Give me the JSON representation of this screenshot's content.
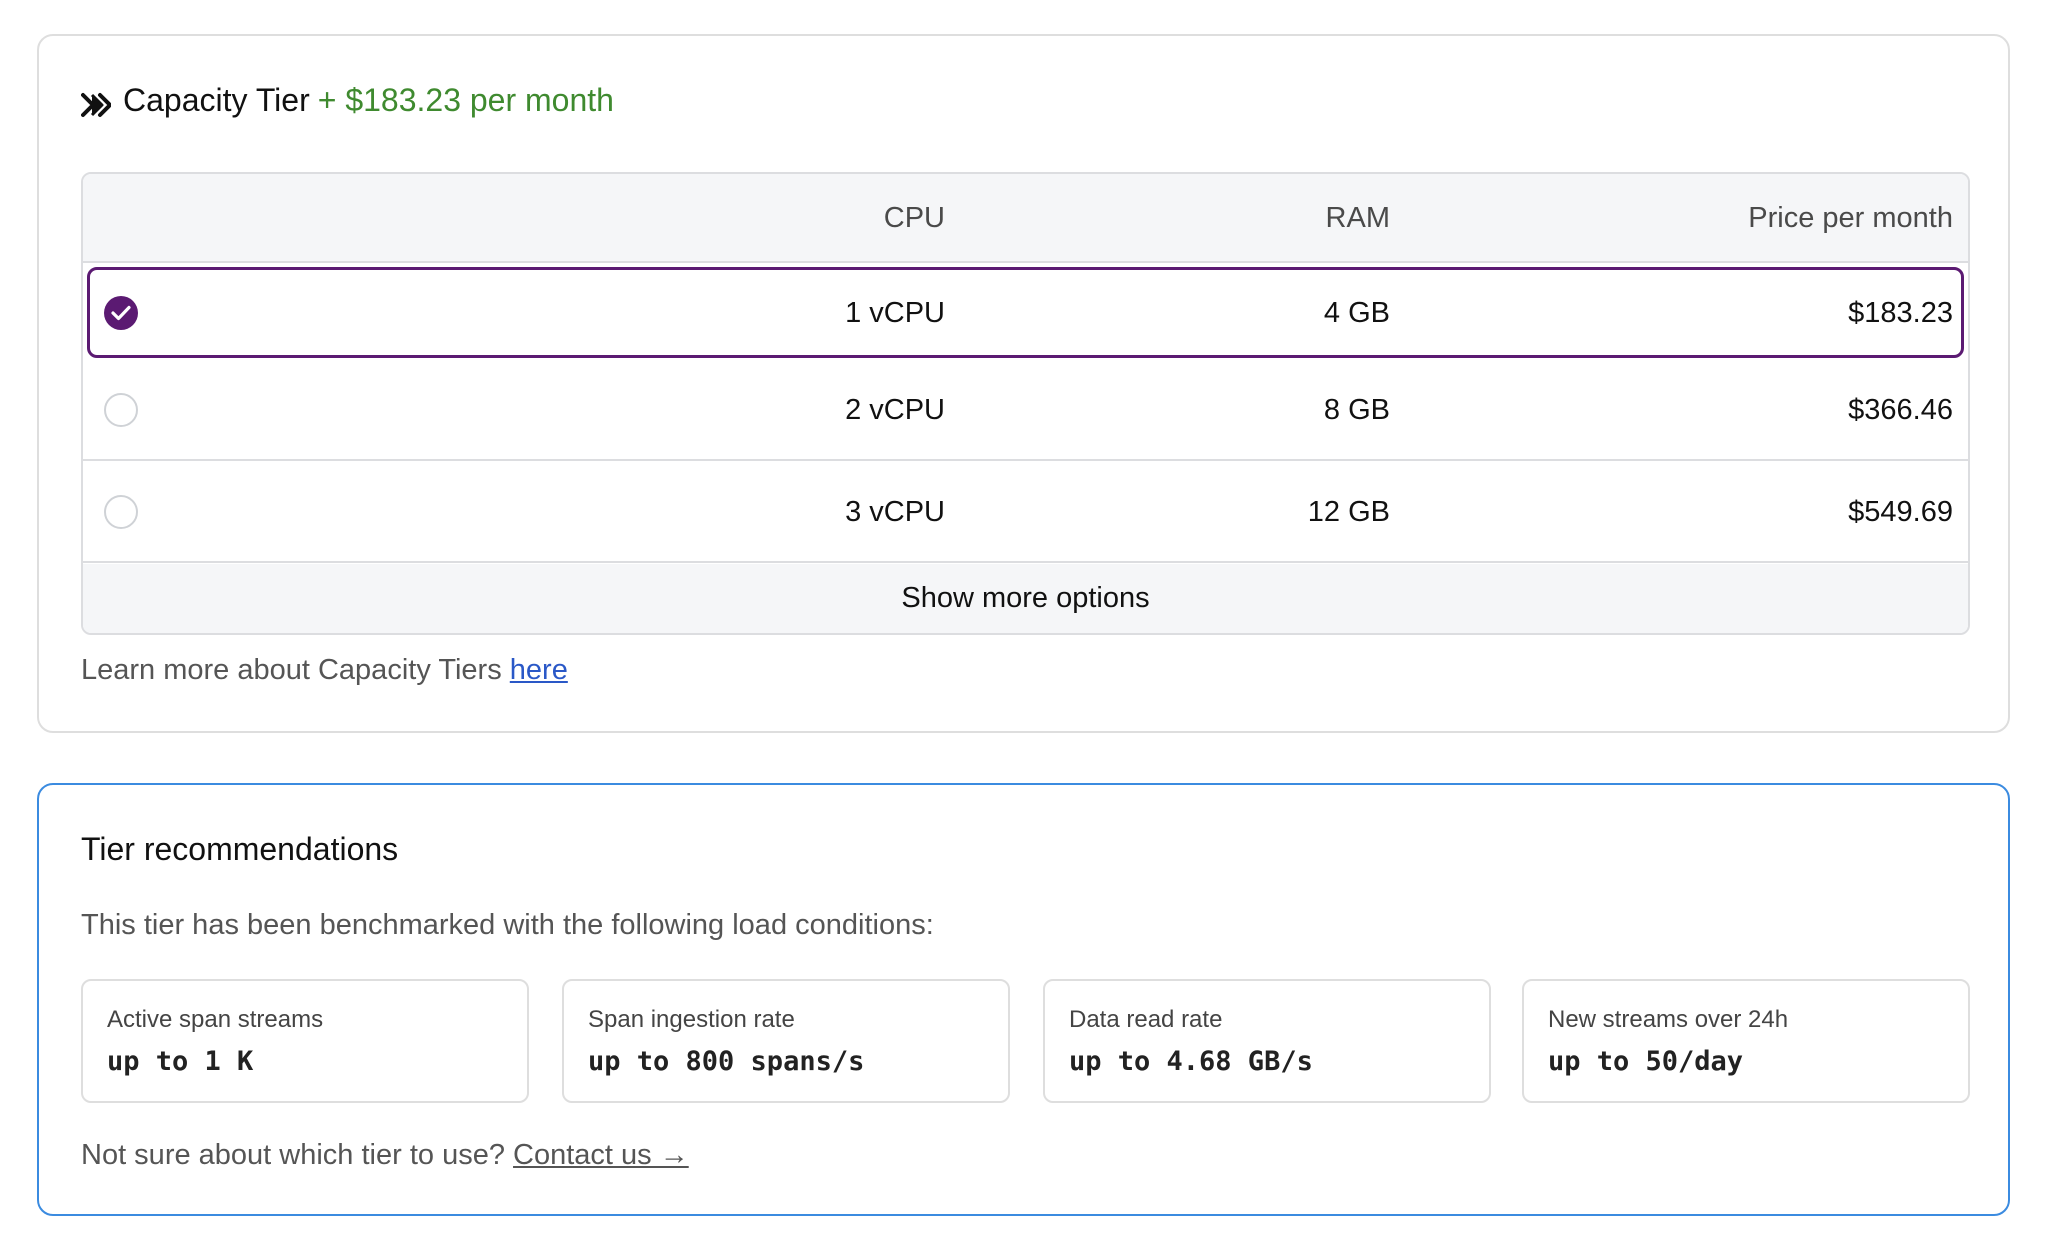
{
  "capacity": {
    "title": "Capacity Tier",
    "price_summary": "+ $183.23 per month",
    "icon": "double-chevron-right-icon",
    "table": {
      "headers": {
        "cpu": "CPU",
        "ram": "RAM",
        "price": "Price per month"
      },
      "rows": [
        {
          "cpu": "1 vCPU",
          "ram": "4 GB",
          "price": "$183.23",
          "selected": true
        },
        {
          "cpu": "2 vCPU",
          "ram": "8 GB",
          "price": "$366.46",
          "selected": false
        },
        {
          "cpu": "3 vCPU",
          "ram": "12 GB",
          "price": "$549.69",
          "selected": false
        }
      ],
      "show_more": "Show more options"
    },
    "learn_more_prefix": "Learn more about Capacity Tiers",
    "learn_more_link": "here",
    "colors": {
      "accent_selected": "#5b1a72",
      "price_green": "#3f8a2f",
      "link_blue": "#2a58c7"
    }
  },
  "recommendations": {
    "title": "Tier recommendations",
    "subtitle": "This tier has been benchmarked with the following load conditions:",
    "metrics": [
      {
        "label": "Active span streams",
        "value": "up to 1 K"
      },
      {
        "label": "Span ingestion rate",
        "value": "up to 800 spans/s"
      },
      {
        "label": "Data read rate",
        "value": "up to 4.68 GB/s"
      },
      {
        "label": "New streams over 24h",
        "value": "up to 50/day"
      }
    ],
    "contact_prefix": "Not sure about which tier to use?",
    "contact_link": "Contact us →",
    "colors": {
      "border_blue": "#3b8be0"
    }
  }
}
